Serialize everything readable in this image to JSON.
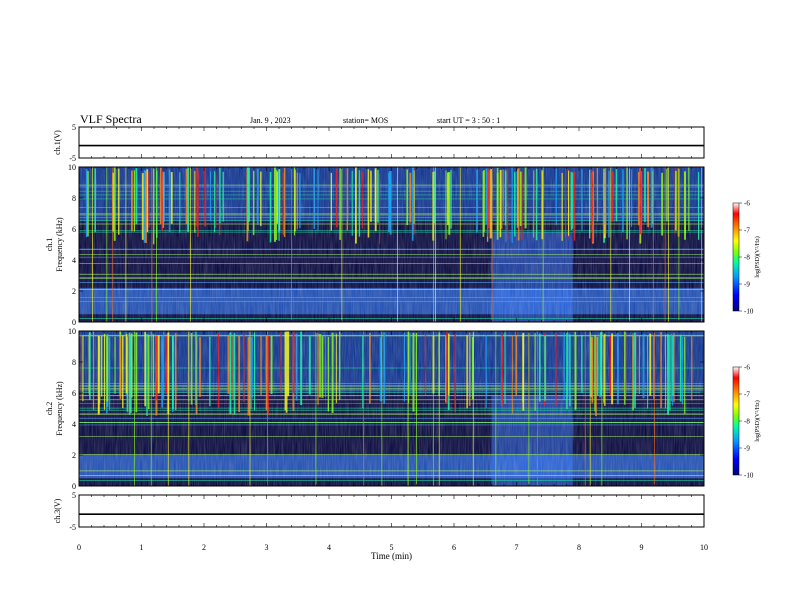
{
  "header": {
    "title": "VLF Spectra",
    "date": "Jan. 9 , 2023",
    "station": "station= MOS",
    "start": "start UT = 3 : 50 : 1"
  },
  "chart_data": [
    {
      "type": "line",
      "name": "ch1_voltage",
      "ylabel": "ch.1(V)",
      "ylim": [
        -5,
        5
      ],
      "ytick_labels": [
        "5",
        "-5"
      ],
      "x": [
        0,
        10
      ],
      "values": [
        -1,
        -1
      ]
    },
    {
      "type": "heatmap",
      "name": "ch1_spectrogram",
      "ylabel": "ch.1\nFrequency (kHz)",
      "ylim": [
        0,
        10
      ],
      "ytick_labels": [
        "0",
        "2",
        "4",
        "6",
        "8",
        "10"
      ],
      "colorbar": {
        "label": "log(PSD)(V²/Hz)",
        "range": [
          -10,
          -6
        ],
        "tick_labels": [
          "-6",
          "-7",
          "-8",
          "-9",
          "-10"
        ],
        "colormap": [
          "#000080",
          "#0000ff",
          "#00a0ff",
          "#00ffa0",
          "#80ff00",
          "#ffff00",
          "#ff8000",
          "#ff0000",
          "#ffffff"
        ]
      },
      "features": {
        "hiss_band_khz": [
          6.5,
          10
        ],
        "low_band_khz": [
          0.5,
          2.2
        ],
        "enhancement_min": [
          6.6,
          7.9
        ]
      }
    },
    {
      "type": "heatmap",
      "name": "ch2_spectrogram",
      "ylabel": "ch.2\nFrequency (kHz)",
      "ylim": [
        0,
        10
      ],
      "ytick_labels": [
        "0",
        "2",
        "4",
        "6",
        "8",
        "10"
      ],
      "colorbar": {
        "label": "log(PSD)(V²/Hz)",
        "range": [
          -10,
          -6
        ],
        "tick_labels": [
          "-6",
          "-7",
          "-8",
          "-9",
          "-10"
        ],
        "colormap": [
          "#000080",
          "#0000ff",
          "#00a0ff",
          "#00ffa0",
          "#80ff00",
          "#ffff00",
          "#ff8000",
          "#ff0000",
          "#ffffff"
        ]
      },
      "features": {
        "hiss_band_khz": [
          6.0,
          10
        ],
        "low_band_khz": [
          0.5,
          2.0
        ],
        "enhancement_min": [
          6.6,
          7.9
        ]
      }
    },
    {
      "type": "line",
      "name": "ch3_voltage",
      "ylabel": "ch.3(V)",
      "ylim": [
        -5,
        5
      ],
      "ytick_labels": [
        "5",
        "-5"
      ],
      "x": [
        0,
        10
      ],
      "values": [
        -1,
        -1
      ]
    }
  ],
  "xaxis": {
    "label": "Time (min)",
    "range": [
      0,
      10
    ],
    "tick_labels": [
      "0",
      "1",
      "2",
      "3",
      "4",
      "5",
      "6",
      "7",
      "8",
      "9",
      "10"
    ]
  }
}
